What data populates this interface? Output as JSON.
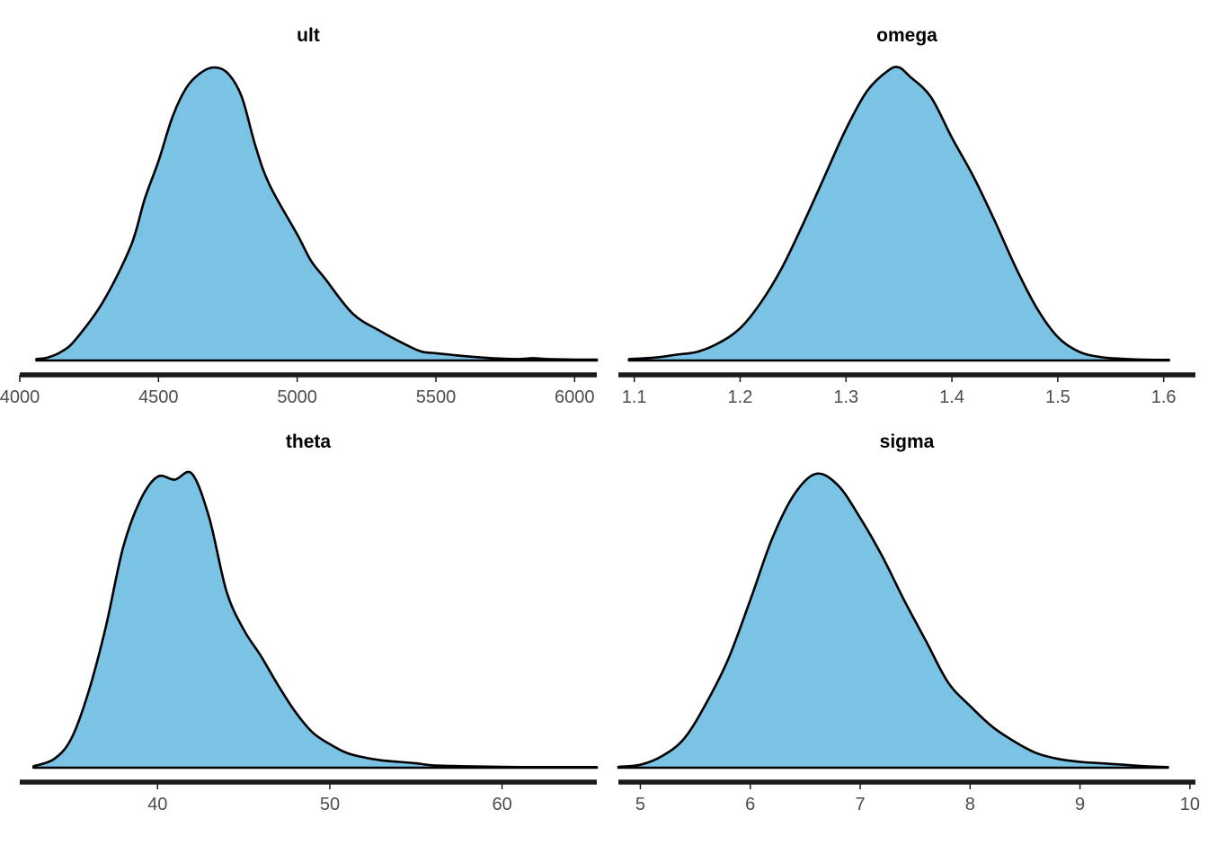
{
  "colors": {
    "fill": "#7ac3e5",
    "line": "#000000",
    "axis": "#1a1a1a",
    "tick_text": "#4d4d4d"
  },
  "chart_data": [
    {
      "type": "area",
      "title": "ult",
      "xlim": [
        4000,
        6080
      ],
      "xticks": [
        "4000",
        "4500",
        "5000",
        "5500",
        "6000"
      ],
      "xtick_values": [
        4000,
        4500,
        5000,
        5500,
        6000
      ],
      "grid": false,
      "x": [
        4060,
        4100,
        4150,
        4200,
        4300,
        4400,
        4450,
        4500,
        4550,
        4600,
        4650,
        4700,
        4750,
        4800,
        4850,
        4900,
        5000,
        5050,
        5100,
        5200,
        5300,
        5400,
        5450,
        5500,
        5550,
        5600,
        5700,
        5800,
        5850,
        5900,
        6000,
        6080
      ],
      "y": [
        0.005,
        0.01,
        0.03,
        0.07,
        0.2,
        0.39,
        0.55,
        0.68,
        0.83,
        0.93,
        0.98,
        1.0,
        0.98,
        0.9,
        0.73,
        0.6,
        0.43,
        0.34,
        0.28,
        0.16,
        0.1,
        0.05,
        0.03,
        0.025,
        0.02,
        0.015,
        0.008,
        0.005,
        0.008,
        0.005,
        0.003,
        0.003
      ]
    },
    {
      "type": "area",
      "title": "omega",
      "xlim": [
        1.085,
        1.63
      ],
      "xticks": [
        "1.1",
        "1.2",
        "1.3",
        "1.4",
        "1.5",
        "1.6"
      ],
      "xtick_values": [
        1.1,
        1.2,
        1.3,
        1.4,
        1.5,
        1.6
      ],
      "grid": false,
      "x": [
        1.095,
        1.12,
        1.14,
        1.16,
        1.18,
        1.2,
        1.22,
        1.24,
        1.26,
        1.28,
        1.3,
        1.32,
        1.34,
        1.35,
        1.36,
        1.38,
        1.4,
        1.42,
        1.44,
        1.46,
        1.48,
        1.5,
        1.52,
        1.54,
        1.56,
        1.58,
        1.605
      ],
      "y": [
        0.005,
        0.01,
        0.02,
        0.03,
        0.06,
        0.11,
        0.2,
        0.32,
        0.47,
        0.63,
        0.79,
        0.92,
        0.99,
        1.0,
        0.97,
        0.9,
        0.76,
        0.63,
        0.48,
        0.32,
        0.18,
        0.08,
        0.03,
        0.012,
        0.006,
        0.003,
        0.002
      ]
    },
    {
      "type": "area",
      "title": "theta",
      "xlim": [
        32,
        65.5
      ],
      "xticks": [
        "40",
        "50",
        "60"
      ],
      "xtick_values": [
        40,
        50,
        60
      ],
      "grid": false,
      "x": [
        32.8,
        34,
        35,
        36,
        37,
        38,
        39,
        40,
        41,
        42,
        43,
        44,
        45,
        46,
        47,
        48,
        49,
        50,
        51,
        52,
        53,
        54,
        55,
        56,
        58,
        60,
        62,
        65.5
      ],
      "y": [
        0.005,
        0.03,
        0.1,
        0.26,
        0.48,
        0.75,
        0.91,
        0.99,
        0.98,
        1.0,
        0.85,
        0.6,
        0.47,
        0.38,
        0.28,
        0.19,
        0.12,
        0.08,
        0.05,
        0.035,
        0.025,
        0.02,
        0.015,
        0.008,
        0.005,
        0.003,
        0.002,
        0.002
      ]
    },
    {
      "type": "area",
      "title": "sigma",
      "xlim": [
        4.8,
        10.05
      ],
      "xticks": [
        "5",
        "6",
        "7",
        "8",
        "9",
        "10"
      ],
      "xtick_values": [
        5,
        6,
        7,
        8,
        9,
        10
      ],
      "grid": false,
      "x": [
        4.8,
        5.0,
        5.2,
        5.4,
        5.6,
        5.8,
        6.0,
        6.2,
        6.4,
        6.6,
        6.8,
        7.0,
        7.2,
        7.4,
        7.6,
        7.8,
        8.0,
        8.2,
        8.4,
        8.6,
        8.8,
        9.0,
        9.2,
        9.4,
        9.6,
        9.8
      ],
      "y": [
        0.003,
        0.01,
        0.04,
        0.1,
        0.22,
        0.37,
        0.57,
        0.78,
        0.93,
        1.0,
        0.96,
        0.85,
        0.72,
        0.57,
        0.43,
        0.29,
        0.21,
        0.14,
        0.09,
        0.05,
        0.03,
        0.02,
        0.015,
        0.01,
        0.005,
        0.002
      ]
    }
  ]
}
